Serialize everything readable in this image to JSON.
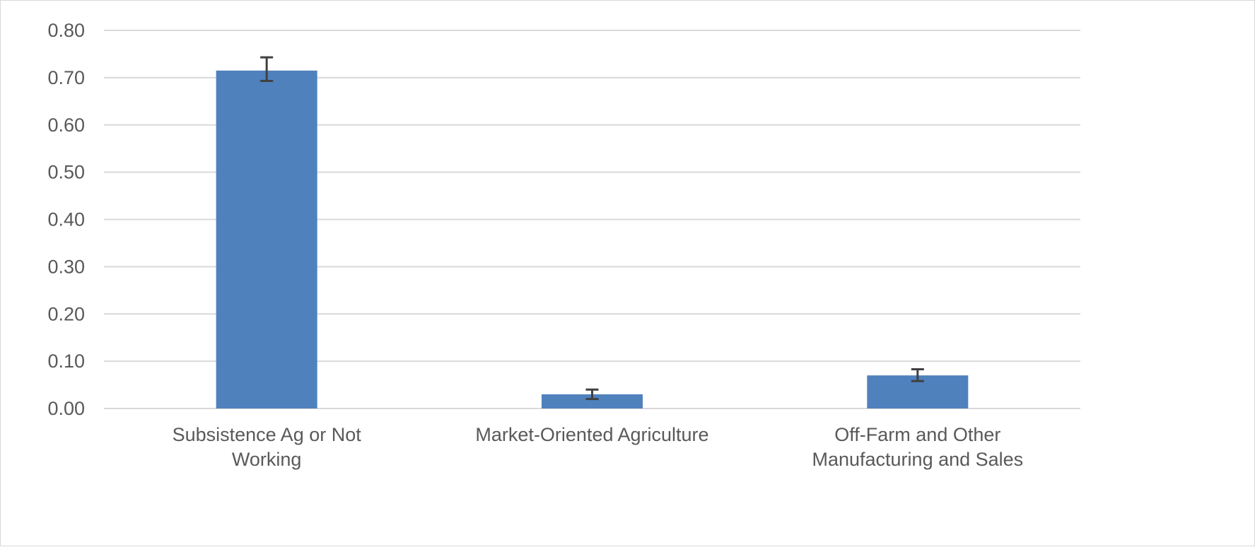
{
  "chart_data": {
    "type": "bar",
    "title": "",
    "xlabel": "",
    "ylabel": "",
    "categories": [
      [
        "Subsistence Ag or Not",
        "Working"
      ],
      [
        "Market-Oriented Agriculture"
      ],
      [
        "Off-Farm and Other",
        "Manufacturing and Sales"
      ]
    ],
    "values": [
      0.715,
      0.03,
      0.07
    ],
    "error_bars": [
      [
        0.693,
        0.743
      ],
      [
        0.02,
        0.04
      ],
      [
        0.058,
        0.083
      ]
    ],
    "ylim": [
      0,
      0.8
    ],
    "y_ticks": [
      "0.00",
      "0.10",
      "0.20",
      "0.30",
      "0.40",
      "0.50",
      "0.60",
      "0.70",
      "0.80"
    ],
    "grid": true,
    "legend": "none",
    "colors": {
      "bar": "#4f81bd",
      "grid": "#d9d9d9",
      "error_bar": "#404040",
      "text": "#595959"
    }
  }
}
